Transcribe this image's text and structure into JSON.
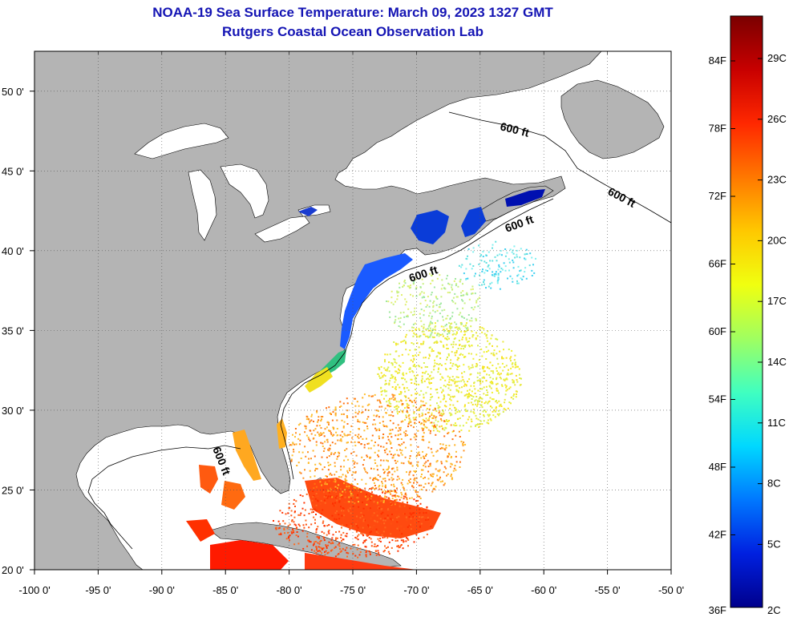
{
  "title": {
    "line1": "NOAA-19 Sea Surface Temperature:  March 09, 2023 1327 GMT",
    "line2": "Rutgers Coastal Ocean Observation Lab"
  },
  "axes": {
    "longitude_labels": [
      "-100 0'",
      "-95 0'",
      "-90 0'",
      "-85 0'",
      "-80 0'",
      "-75 0'",
      "-70 0'",
      "-65 0'",
      "-60 0'",
      "-55 0'",
      "-50 0'"
    ],
    "latitude_labels": [
      "50 0'",
      "45 0'",
      "40 0'",
      "35 0'",
      "30 0'",
      "25 0'",
      "20 0'"
    ]
  },
  "map": {
    "lon_range": [
      -100,
      -50
    ],
    "lat_range": [
      20,
      52.5
    ],
    "land_color": "#b4b4b4",
    "ocean_color": "#ffffff",
    "contour_label": "600 ft"
  },
  "colorbar": {
    "fahrenheit_labels": [
      "84F",
      "78F",
      "72F",
      "66F",
      "60F",
      "54F",
      "48F",
      "42F",
      "36F"
    ],
    "celsius_labels": [
      "29C",
      "26C",
      "23C",
      "20C",
      "17C",
      "14C",
      "11C",
      "8C",
      "5C",
      "2C"
    ],
    "colors": [
      "#7a0000",
      "#c80000",
      "#ff2800",
      "#ff7800",
      "#ffc800",
      "#f0ff10",
      "#a0ff60",
      "#40ffc0",
      "#00d8ff",
      "#0078ff",
      "#0020e0",
      "#00008c"
    ]
  }
}
